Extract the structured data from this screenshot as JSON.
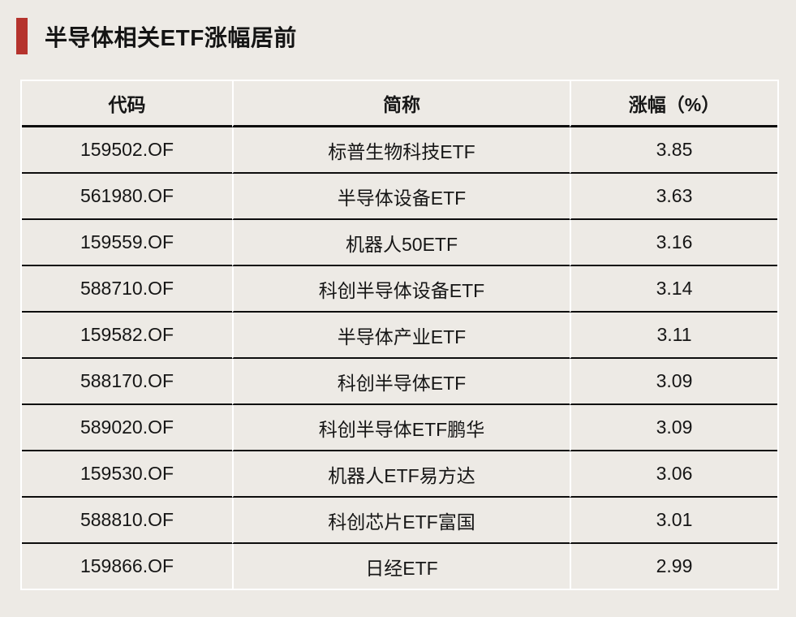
{
  "page": {
    "background_color": "#edeae5",
    "accent_color": "#b5332d"
  },
  "header": {
    "title": "半导体相关ETF涨幅居前"
  },
  "chart_data": {
    "type": "table",
    "title": "半导体相关ETF涨幅居前",
    "columns": [
      "代码",
      "简称",
      "涨幅（%）"
    ],
    "rows": [
      {
        "code": "159502.OF",
        "name": "标普生物科技ETF",
        "change": "3.85"
      },
      {
        "code": "561980.OF",
        "name": "半导体设备ETF",
        "change": "3.63"
      },
      {
        "code": "159559.OF",
        "name": "机器人50ETF",
        "change": "3.16"
      },
      {
        "code": "588710.OF",
        "name": "科创半导体设备ETF",
        "change": "3.14"
      },
      {
        "code": "159582.OF",
        "name": "半导体产业ETF",
        "change": "3.11"
      },
      {
        "code": "588170.OF",
        "name": "科创半导体ETF",
        "change": "3.09"
      },
      {
        "code": "589020.OF",
        "name": "科创半导体ETF鹏华",
        "change": "3.09"
      },
      {
        "code": "159530.OF",
        "name": "机器人ETF易方达",
        "change": "3.06"
      },
      {
        "code": "588810.OF",
        "name": "科创芯片ETF富国",
        "change": "3.01"
      },
      {
        "code": "159866.OF",
        "name": "日经ETF",
        "change": "2.99"
      }
    ]
  }
}
